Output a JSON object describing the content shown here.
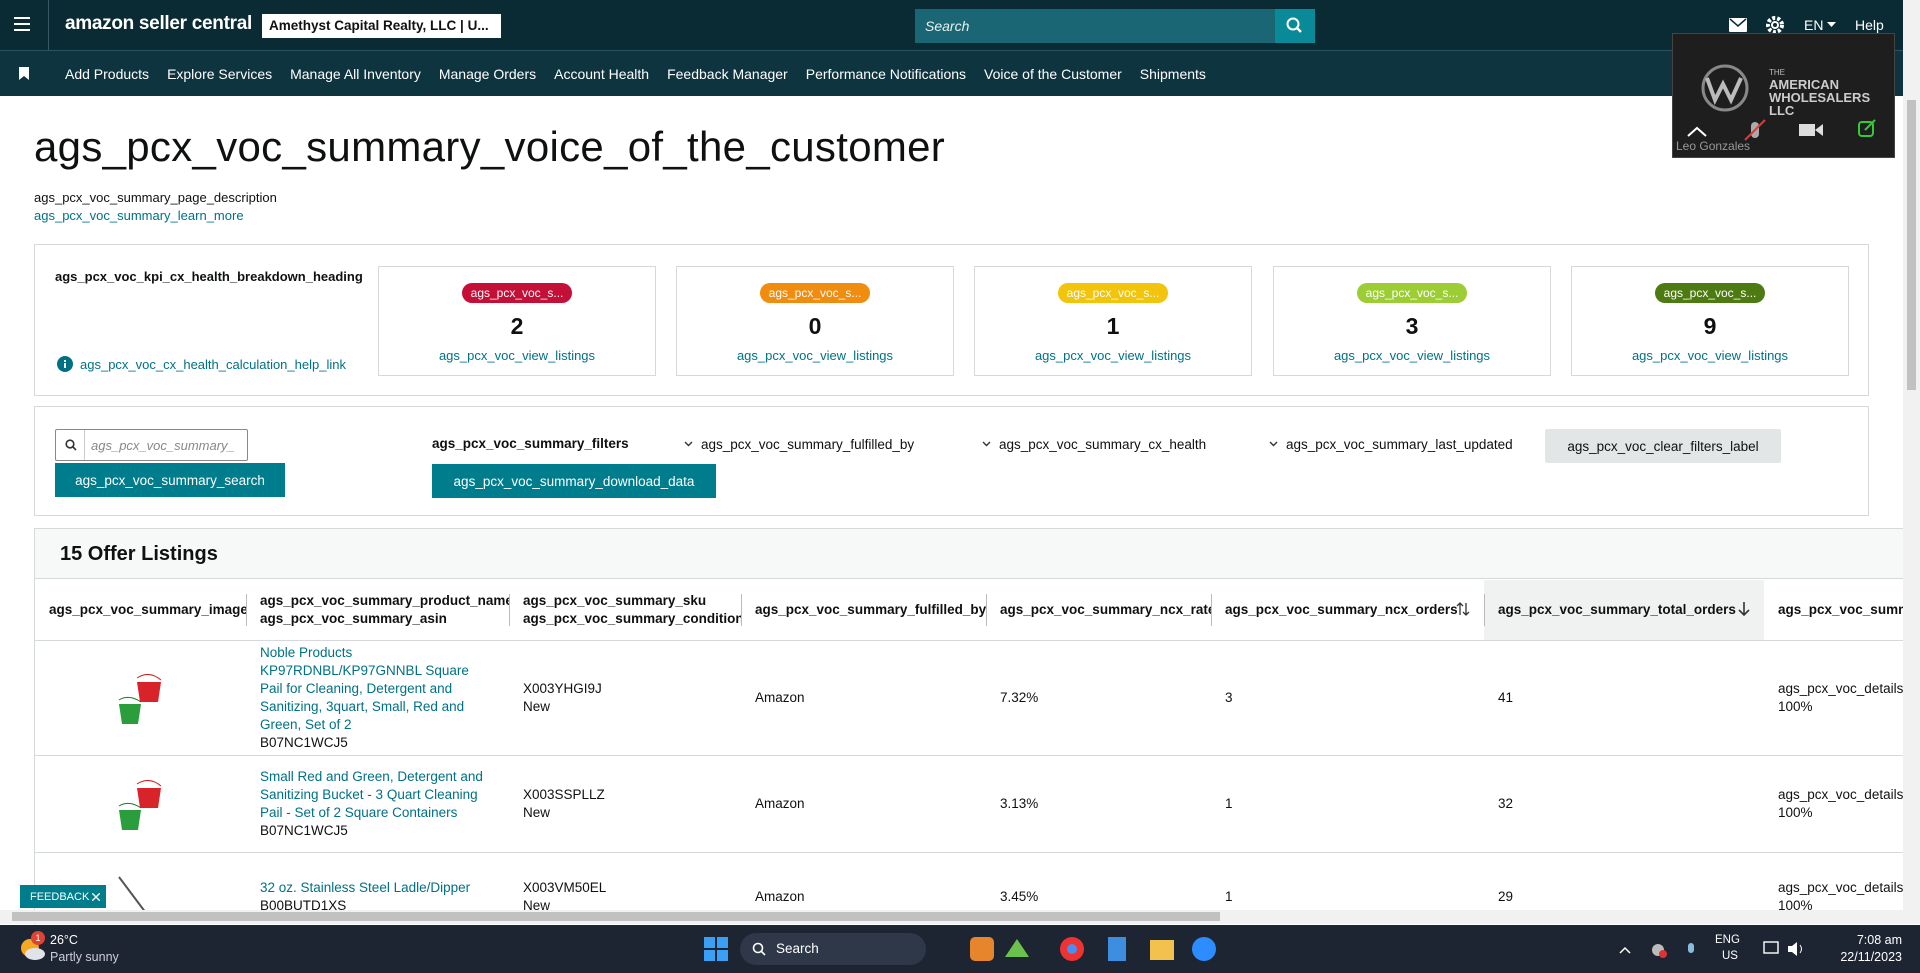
{
  "header": {
    "logo": "amazon seller central",
    "store": "Amethyst Capital Realty, LLC | U...",
    "search_placeholder": "Search",
    "language": "EN",
    "help": "Help"
  },
  "nav": [
    "Add Products",
    "Explore Services",
    "Manage All Inventory",
    "Manage Orders",
    "Account Health",
    "Feedback Manager",
    "Performance Notifications",
    "Voice of the Customer",
    "Shipments"
  ],
  "video": {
    "brand_small": "THE",
    "brand": "AMERICAN WHOLESALERS LLC",
    "name": "Leo Gonzales"
  },
  "page": {
    "title": "ags_pcx_voc_summary_voice_of_the_customer",
    "description": "ags_pcx_voc_summary_page_description",
    "learn_more": "ags_pcx_voc_summary_learn_more"
  },
  "kpi": {
    "heading": "ags_pcx_voc_kpi_cx_health_breakdown_heading",
    "help_link": "ags_pcx_voc_cx_health_calculation_help_link",
    "cards": [
      {
        "badge": "ags_pcx_voc_s...",
        "color": "#c40f36",
        "count": 2,
        "link": "ags_pcx_voc_view_listings"
      },
      {
        "badge": "ags_pcx_voc_s...",
        "color": "#f08c10",
        "count": 0,
        "link": "ags_pcx_voc_view_listings"
      },
      {
        "badge": "ags_pcx_voc_s...",
        "color": "#f2c40c",
        "count": 1,
        "link": "ags_pcx_voc_view_listings"
      },
      {
        "badge": "ags_pcx_voc_s...",
        "color": "#9ccd35",
        "count": 3,
        "link": "ags_pcx_voc_view_listings"
      },
      {
        "badge": "ags_pcx_voc_s...",
        "color": "#4e7a12",
        "count": 9,
        "link": "ags_pcx_voc_view_listings"
      }
    ]
  },
  "filters": {
    "search_placeholder": "ags_pcx_voc_summary_",
    "search_button": "ags_pcx_voc_summary_search",
    "filters_label": "ags_pcx_voc_summary_filters",
    "download": "ags_pcx_voc_summary_download_data",
    "dropdowns": [
      "ags_pcx_voc_summary_fulfilled_by",
      "ags_pcx_voc_summary_cx_health",
      "ags_pcx_voc_summary_last_updated"
    ],
    "clear": "ags_pcx_voc_clear_filters_label"
  },
  "table": {
    "title": "15 Offer Listings",
    "columns": [
      [
        "ags_pcx_voc_summary_image"
      ],
      [
        "ags_pcx_voc_summary_product_name",
        "ags_pcx_voc_summary_asin"
      ],
      [
        "ags_pcx_voc_summary_sku",
        "ags_pcx_voc_summary_condition"
      ],
      [
        "ags_pcx_voc_summary_fulfilled_by"
      ],
      [
        "ags_pcx_voc_summary_ncx_rate"
      ],
      [
        "ags_pcx_voc_summary_ncx_orders"
      ],
      [
        "ags_pcx_voc_summary_total_orders"
      ],
      [
        "ags_pcx_voc_summa"
      ]
    ],
    "rows": [
      {
        "product": "Noble Products KP97RDNBL/KP97GNNBL Square Pail for Cleaning, Detergent and Sanitizing, 3quart, Small, Red and Green, Set of 2",
        "asin": "B07NC1WCJ5",
        "sku": "X003YHGI9J",
        "condition": "New",
        "fulfilled_by": "Amazon",
        "ncx_rate": "7.32%",
        "ncx_orders": "3",
        "total_orders": "41",
        "details": "ags_pcx_voc_details_",
        "details_rate": "100%"
      },
      {
        "product": "Small Red and Green, Detergent and Sanitizing Bucket - 3 Quart Cleaning Pail - Set of 2 Square Containers",
        "asin": "B07NC1WCJ5",
        "sku": "X003SSPLLZ",
        "condition": "New",
        "fulfilled_by": "Amazon",
        "ncx_rate": "3.13%",
        "ncx_orders": "1",
        "total_orders": "32",
        "details": "ags_pcx_voc_details_",
        "details_rate": "100%"
      },
      {
        "product": "32 oz. Stainless Steel Ladle/Dipper",
        "asin": "B00BUTD1XS",
        "sku": "X003VM50EL",
        "condition": "New",
        "fulfilled_by": "Amazon",
        "ncx_rate": "3.45%",
        "ncx_orders": "1",
        "total_orders": "29",
        "details": "ags_pcx_voc_details_",
        "details_rate": "100%"
      }
    ]
  },
  "feedback": "FEEDBACK",
  "taskbar": {
    "weather_badge": "1",
    "temperature": "26°C",
    "weather": "Partly sunny",
    "search": "Search",
    "language": "ENG",
    "region": "US",
    "time": "7:08 am",
    "date": "22/11/2023"
  }
}
